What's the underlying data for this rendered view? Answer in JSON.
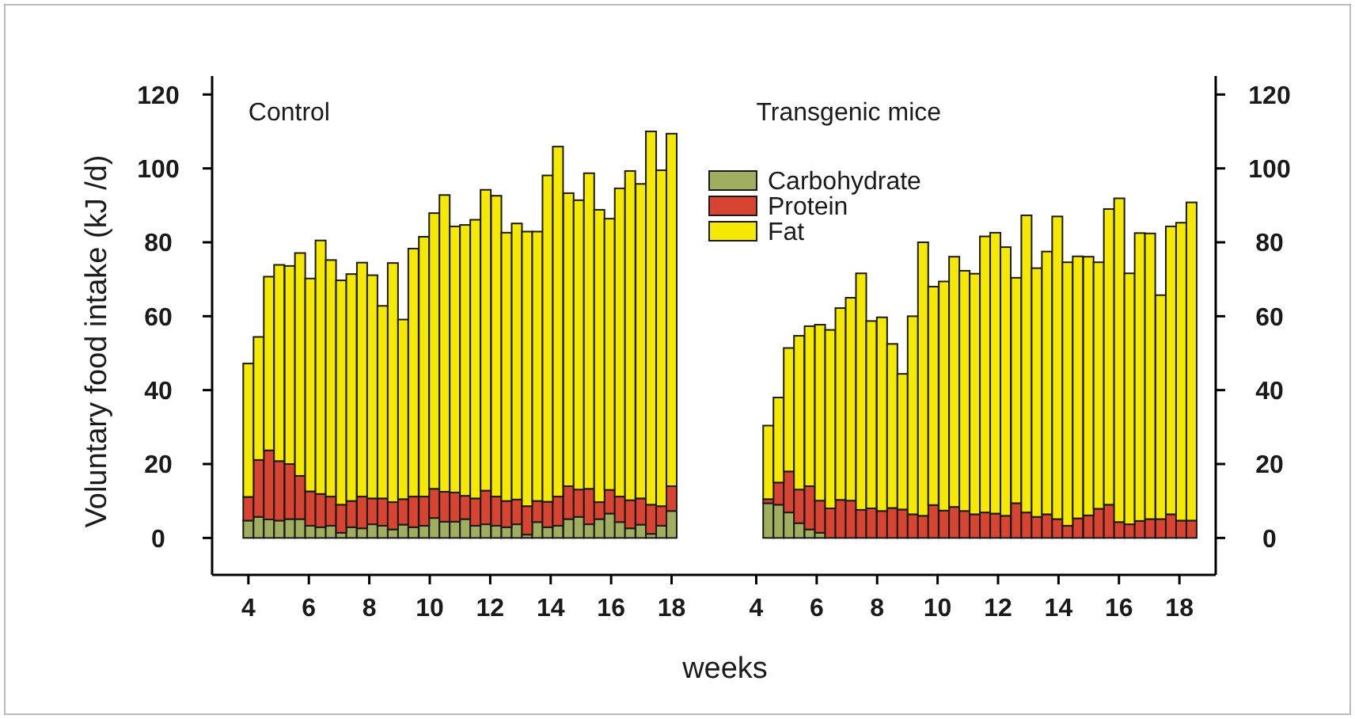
{
  "chart_data": [
    {
      "type": "bar",
      "title": "Control",
      "ylabel": "Voluntary food  intake  (kJ /d)",
      "xlabel": "weeks",
      "stacked": true,
      "x": [
        4,
        4.34,
        4.68,
        5.02,
        5.37,
        5.71,
        6.05,
        6.39,
        6.73,
        7.07,
        7.41,
        7.76,
        8.1,
        8.44,
        8.78,
        9.12,
        9.46,
        9.81,
        10.15,
        10.49,
        10.83,
        11.17,
        11.51,
        11.85,
        12.2,
        12.54,
        12.88,
        13.22,
        13.56,
        13.9,
        14.24,
        14.59,
        14.93,
        15.27,
        15.61,
        15.95,
        16.29,
        16.63,
        16.98,
        17.32,
        17.66,
        18.0
      ],
      "series": [
        {
          "color": "#9fae5f",
          "values": [
            4.7,
            5.7,
            5.0,
            4.7,
            5.1,
            5.1,
            3.3,
            2.9,
            3.3,
            1.4,
            2.9,
            2.6,
            3.7,
            3.3,
            2.3,
            3.6,
            2.9,
            3.3,
            5.4,
            4.4,
            4.4,
            5.1,
            3.3,
            3.7,
            3.3,
            2.9,
            3.7,
            0.9,
            4.3,
            2.9,
            3.3,
            5.1,
            5.7,
            3.7,
            5.1,
            6.6,
            4.3,
            2.6,
            3.6,
            1.1,
            3.3,
            7.3
          ]
        },
        {
          "color": "#d84432",
          "values": [
            6.4,
            15.4,
            18.7,
            16.1,
            14.9,
            11.7,
            9.3,
            9.0,
            7.9,
            7.6,
            7.1,
            8.6,
            7.0,
            7.4,
            7.4,
            6.9,
            8.3,
            7.9,
            7.9,
            8.1,
            7.9,
            6.3,
            7.4,
            9.1,
            7.9,
            7.1,
            6.7,
            7.7,
            5.7,
            6.9,
            7.9,
            8.9,
            7.4,
            9.6,
            4.6,
            6.4,
            6.9,
            7.6,
            7.1,
            7.9,
            5.3,
            6.7
          ]
        },
        {
          "color": "#f5e900",
          "values": [
            36.1,
            33.3,
            47.0,
            53.1,
            53.6,
            60.3,
            57.6,
            68.6,
            64.0,
            60.7,
            61.4,
            63.3,
            60.4,
            52.1,
            64.7,
            48.6,
            67.1,
            70.3,
            74.6,
            80.3,
            72.0,
            73.3,
            75.4,
            81.4,
            81.4,
            72.6,
            74.7,
            74.3,
            72.9,
            88.3,
            94.7,
            79.3,
            78.3,
            85.4,
            79.1,
            73.4,
            83.4,
            89.1,
            85.1,
            101.0,
            90.9,
            95.4
          ]
        }
      ],
      "xlim": [
        2.8,
        19.4
      ],
      "xticks": [
        4,
        6,
        8,
        10,
        12,
        14,
        16,
        18
      ],
      "ylim": [
        -10,
        125
      ],
      "yticks": [
        0,
        20,
        40,
        60,
        80,
        100,
        120
      ]
    },
    {
      "type": "bar",
      "title": "Transgenic mice",
      "stacked": true,
      "legend": "top left",
      "x": [
        4.4,
        4.74,
        5.08,
        5.42,
        5.77,
        6.11,
        6.45,
        6.79,
        7.13,
        7.47,
        7.81,
        8.16,
        8.5,
        8.84,
        9.18,
        9.52,
        9.86,
        10.21,
        10.55,
        10.89,
        11.23,
        11.57,
        11.91,
        12.25,
        12.6,
        12.94,
        13.28,
        13.62,
        13.96,
        14.3,
        14.64,
        14.99,
        15.33,
        15.67,
        16.01,
        16.35,
        16.69,
        17.03,
        17.38,
        17.72,
        18.06,
        18.4
      ],
      "series": [
        {
          "name": "Carbohydrate",
          "color": "#9fae5f",
          "axis": "y2",
          "values": [
            9.4,
            9.0,
            6.9,
            4.0,
            2.3,
            1.4,
            null,
            null,
            0,
            0,
            0,
            0,
            0,
            0,
            0,
            0,
            0,
            0,
            0,
            0,
            0,
            0,
            0,
            0,
            0,
            0,
            0,
            0,
            0,
            0,
            0,
            0,
            0,
            0,
            0,
            0,
            0,
            0,
            0,
            0,
            0,
            0
          ]
        },
        {
          "name": "Protein",
          "color": "#d84432",
          "axis": "y2",
          "values": [
            1.1,
            6.0,
            11.1,
            9.1,
            11.7,
            8.7,
            8.0,
            10.3,
            10.1,
            7.6,
            8.0,
            7.3,
            8.1,
            7.7,
            6.4,
            6.0,
            8.9,
            7.4,
            8.4,
            7.3,
            6.4,
            6.9,
            6.6,
            6.0,
            9.4,
            6.9,
            5.7,
            6.4,
            5.1,
            3.3,
            5.3,
            6.1,
            7.9,
            9.0,
            4.3,
            3.7,
            4.6,
            5.1,
            5.1,
            6.4,
            4.7,
            4.7
          ]
        },
        {
          "name": "Fat",
          "color": "#f5e900",
          "axis": "y2",
          "values": [
            19.9,
            23.0,
            33.4,
            41.6,
            43.3,
            47.6,
            48.3,
            51.9,
            54.9,
            64.0,
            50.7,
            52.4,
            44.4,
            36.7,
            53.6,
            74.0,
            59.1,
            62.0,
            67.7,
            65.0,
            65.1,
            74.7,
            76.0,
            72.7,
            61.0,
            80.4,
            67.3,
            71.1,
            81.9,
            71.3,
            70.9,
            70.0,
            66.7,
            80.0,
            87.6,
            67.9,
            77.9,
            77.3,
            60.6,
            77.9,
            80.6,
            86.1
          ]
        }
      ],
      "xlim": [
        2.6,
        19.2
      ],
      "xticks": [
        4,
        6,
        8,
        10,
        12,
        14,
        16,
        18
      ],
      "y2lim": [
        -10,
        125
      ],
      "y2ticks": [
        0,
        20,
        40,
        60,
        80,
        100,
        120
      ]
    }
  ]
}
